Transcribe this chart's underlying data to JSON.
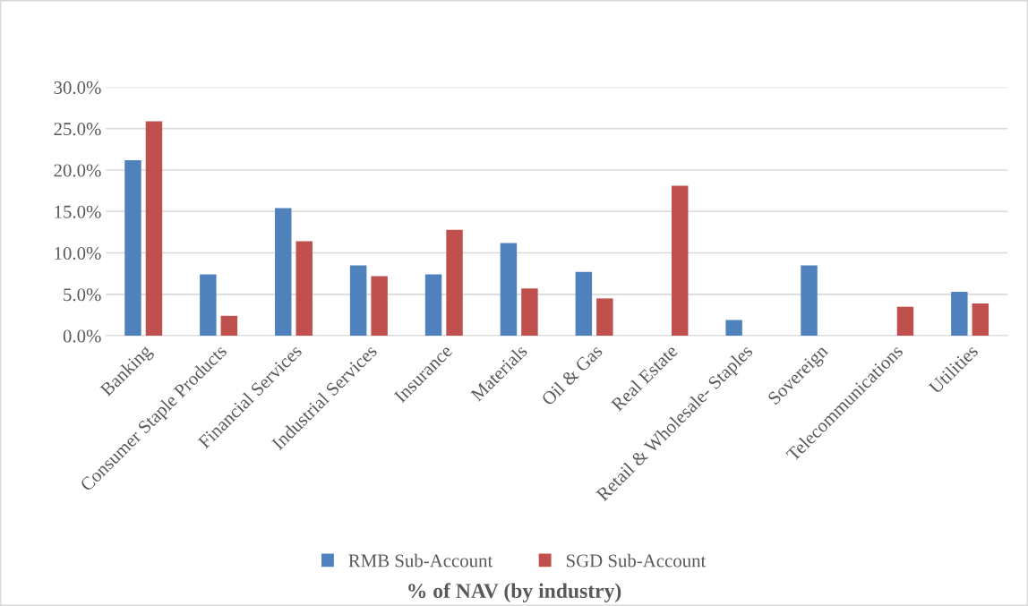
{
  "chart_data": {
    "type": "bar",
    "title": "% of NAV (by industry)",
    "categories": [
      "Banking",
      "Consumer Staple Products",
      "Financial Services",
      "Industrial Services",
      "Insurance",
      "Materials",
      "Oil & Gas",
      "Real Estate",
      "Retail & Wholesale- Staples",
      "Sovereign",
      "Telecommunications",
      "Utilities"
    ],
    "series": [
      {
        "name": "RMB Sub-Account",
        "color": "#4f81bd",
        "values": [
          21.2,
          7.4,
          15.4,
          8.5,
          7.4,
          11.2,
          7.7,
          null,
          1.9,
          8.5,
          null,
          5.3
        ]
      },
      {
        "name": "SGD Sub-Account",
        "color": "#c0504d",
        "values": [
          25.9,
          2.4,
          11.4,
          7.2,
          12.8,
          5.7,
          4.5,
          18.1,
          null,
          null,
          3.5,
          3.9
        ]
      }
    ],
    "ylim": [
      0,
      30
    ],
    "yticks": [
      {
        "value": 0,
        "label": "0.0%"
      },
      {
        "value": 5,
        "label": "5.0%"
      },
      {
        "value": 10,
        "label": "10.0%"
      },
      {
        "value": 15,
        "label": "15.0%"
      },
      {
        "value": 20,
        "label": "20.0%"
      },
      {
        "value": 25,
        "label": "25.0%"
      },
      {
        "value": 30,
        "label": "30.0%"
      }
    ],
    "grid": "y",
    "legend": "bottom"
  }
}
